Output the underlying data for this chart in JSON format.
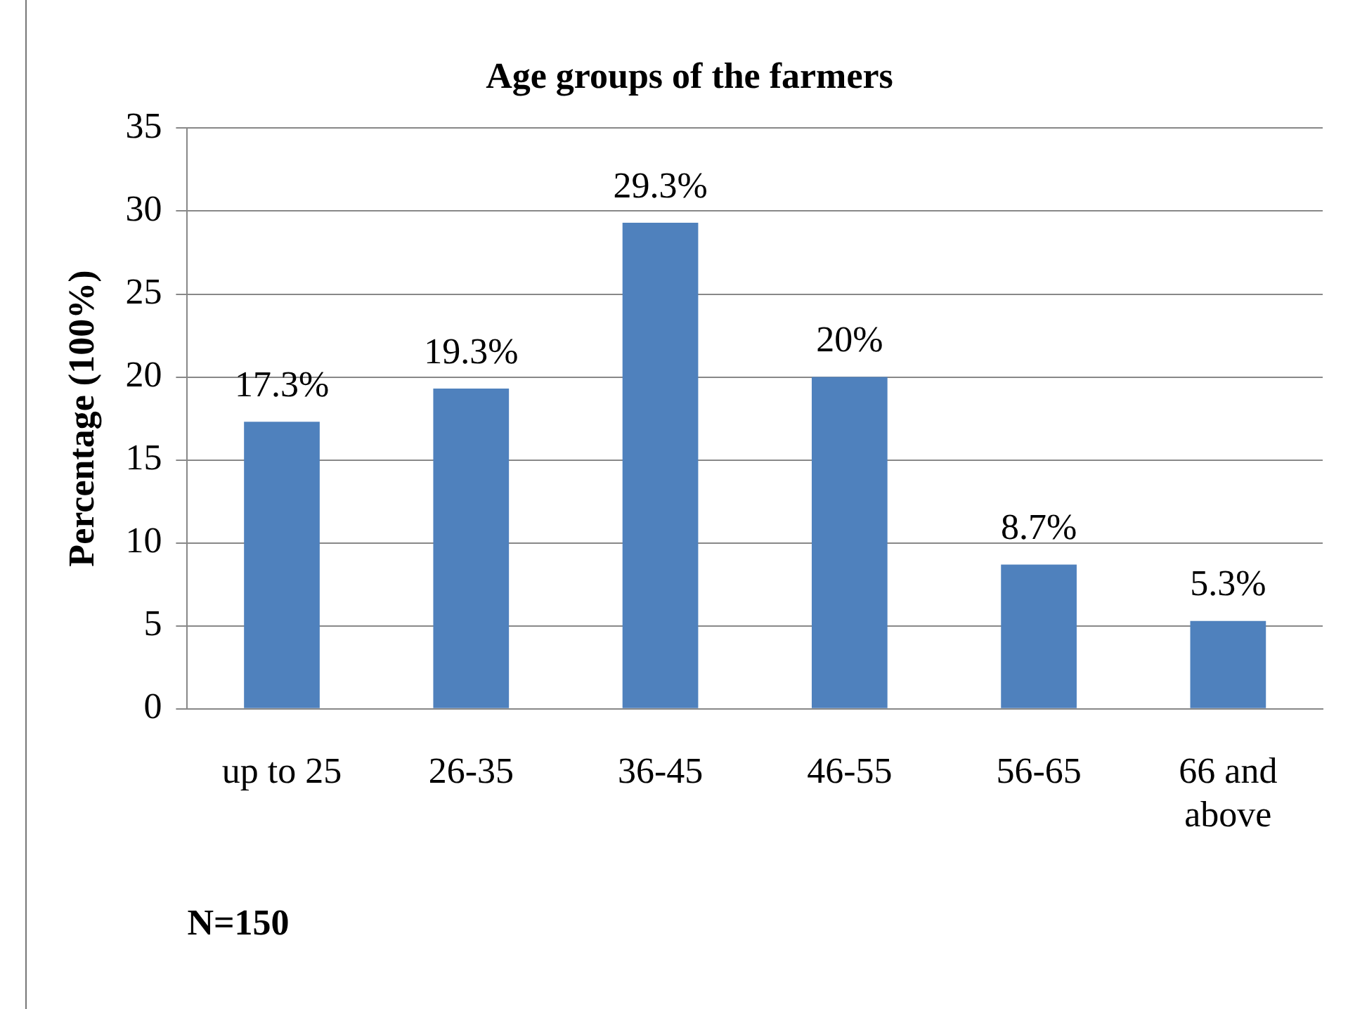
{
  "chart_data": {
    "type": "bar",
    "title": "Age groups of the farmers",
    "xlabel": "N=150",
    "ylabel": "Percentage (100%)",
    "categories": [
      "up to 25",
      "26-35",
      "36-45",
      "46-55",
      "56-65",
      "66 and above"
    ],
    "values": [
      17.3,
      19.3,
      29.3,
      20,
      8.7,
      5.3
    ],
    "value_labels": [
      "17.3%",
      "19.3%",
      "29.3%",
      "20%",
      "8.7%",
      "5.3%"
    ],
    "color": "#4f81bd",
    "ylim": [
      0,
      35
    ],
    "yticks": [
      0,
      5,
      10,
      15,
      20,
      25,
      30,
      35
    ],
    "grid": "y",
    "legend": false
  }
}
